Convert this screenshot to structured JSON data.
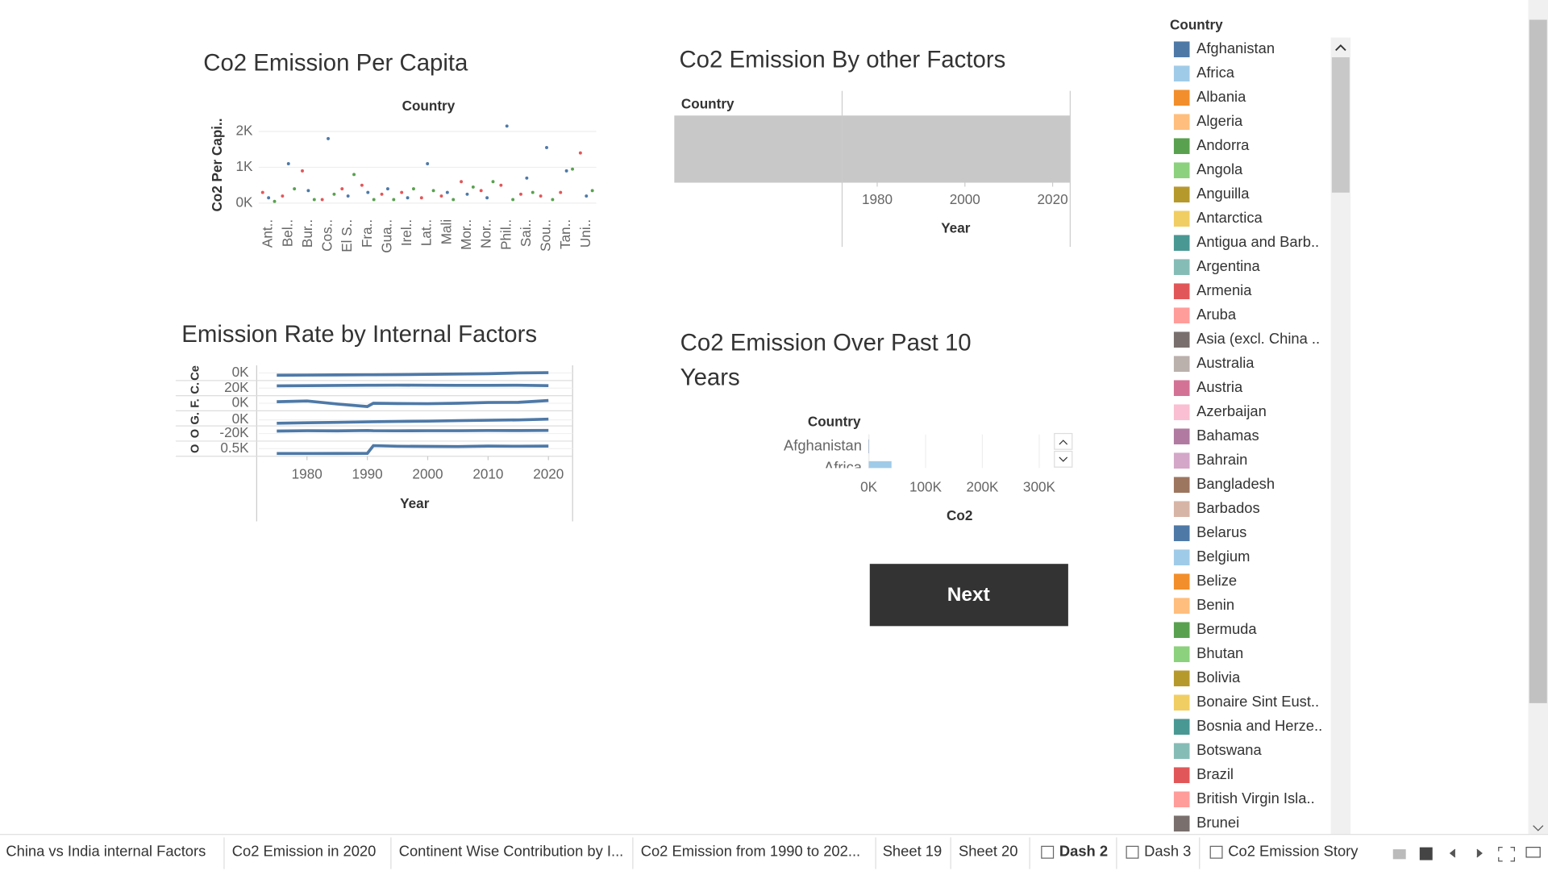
{
  "legend": {
    "title": "Country",
    "entries": [
      {
        "name": "Afghanistan",
        "color": "#4e79a7"
      },
      {
        "name": "Africa",
        "color": "#a0cbe8"
      },
      {
        "name": "Albania",
        "color": "#f28e2b"
      },
      {
        "name": "Algeria",
        "color": "#ffbe7d"
      },
      {
        "name": "Andorra",
        "color": "#59a14f"
      },
      {
        "name": "Angola",
        "color": "#8cd17d"
      },
      {
        "name": "Anguilla",
        "color": "#b6992d"
      },
      {
        "name": "Antarctica",
        "color": "#f1ce63"
      },
      {
        "name": "Antigua and Barb..",
        "color": "#499894"
      },
      {
        "name": "Argentina",
        "color": "#86bcb6"
      },
      {
        "name": "Armenia",
        "color": "#e15759"
      },
      {
        "name": "Aruba",
        "color": "#ff9d9a"
      },
      {
        "name": "Asia (excl. China ..",
        "color": "#79706e"
      },
      {
        "name": "Australia",
        "color": "#bab0ac"
      },
      {
        "name": "Austria",
        "color": "#d37295"
      },
      {
        "name": "Azerbaijan",
        "color": "#fabfd2"
      },
      {
        "name": "Bahamas",
        "color": "#b07aa1"
      },
      {
        "name": "Bahrain",
        "color": "#d4a6c8"
      },
      {
        "name": "Bangladesh",
        "color": "#9d7660"
      },
      {
        "name": "Barbados",
        "color": "#d7b5a6"
      },
      {
        "name": "Belarus",
        "color": "#4e79a7"
      },
      {
        "name": "Belgium",
        "color": "#a0cbe8"
      },
      {
        "name": "Belize",
        "color": "#f28e2b"
      },
      {
        "name": "Benin",
        "color": "#ffbe7d"
      },
      {
        "name": "Bermuda",
        "color": "#59a14f"
      },
      {
        "name": "Bhutan",
        "color": "#8cd17d"
      },
      {
        "name": "Bolivia",
        "color": "#b6992d"
      },
      {
        "name": "Bonaire Sint Eust..",
        "color": "#f1ce63"
      },
      {
        "name": "Bosnia and Herze..",
        "color": "#499894"
      },
      {
        "name": "Botswana",
        "color": "#86bcb6"
      },
      {
        "name": "Brazil",
        "color": "#e15759"
      },
      {
        "name": "British Virgin Isla..",
        "color": "#ff9d9a"
      },
      {
        "name": "Brunei",
        "color": "#79706e"
      }
    ]
  },
  "tabs": [
    "China vs India internal Factors",
    "Co2 Emission in 2020",
    "Continent Wise Contribution by I...",
    "Co2 Emission from 1990 to 202...",
    "Sheet 19",
    "Sheet 20",
    "Dash 2",
    "Dash 3",
    "Co2 Emission Story"
  ],
  "active_tab": 6,
  "button": "Next",
  "chart_data": [
    {
      "type": "scatter",
      "title": "Co2 Emission Per Capita",
      "header": "Country",
      "y_label": "Co2 Per Capi..",
      "categories": [
        "Ant..",
        "Bel..",
        "Bur..",
        "Cos..",
        "El S..",
        "Fra..",
        "Gua..",
        "Irel..",
        "Lat..",
        "Mali",
        "Mor..",
        "Nor..",
        "Phil..",
        "Sai..",
        "Sou..",
        "Tan..",
        "Uni.."
      ],
      "series": [
        {
          "color": "#e15759",
          "values": [
            300,
            200,
            900,
            100,
            400,
            500,
            250,
            300,
            150,
            200,
            600,
            350,
            500,
            250,
            200,
            300,
            1400
          ]
        },
        {
          "color": "#4e79a7",
          "values": [
            150,
            1100,
            350,
            1800,
            200,
            300,
            400,
            150,
            1100,
            300,
            250,
            150,
            2150,
            700,
            1550,
            900,
            200
          ]
        },
        {
          "color": "#59a14f",
          "values": [
            50,
            400,
            100,
            250,
            800,
            100,
            100,
            400,
            350,
            100,
            450,
            600,
            100,
            300,
            100,
            950,
            350
          ]
        }
      ],
      "ylim": [
        -200,
        2250
      ],
      "yticks": [
        {
          "value": 0,
          "label": "0K"
        },
        {
          "value": 1000,
          "label": "1K"
        },
        {
          "value": 2000,
          "label": "2K"
        }
      ]
    },
    {
      "type": "band",
      "title": "Co2 Emission By other Factors",
      "header": "Country",
      "x_label": "Year",
      "xlim": [
        1972,
        2024
      ],
      "xticks": [
        1980,
        2000,
        2020
      ]
    },
    {
      "type": "line",
      "title": "Emission Rate by Internal Factors",
      "x_label": "Year",
      "x": [
        1975,
        1980,
        1985,
        1990,
        1991,
        1995,
        2000,
        2005,
        2010,
        2015,
        2020
      ],
      "xlim": [
        1972,
        2024
      ],
      "xticks": [
        1980,
        1990,
        2000,
        2010,
        2020
      ],
      "series": [
        {
          "name": "Ce",
          "color": "#4e79a7",
          "ylim": [
            -5000,
            5000
          ],
          "ytick": {
            "value": 0,
            "label": "0K"
          },
          "values": [
            -1500,
            -1400,
            -1300,
            -1200,
            -1200,
            -1100,
            -900,
            -700,
            -500,
            0,
            200
          ]
        },
        {
          "name": "C.",
          "color": "#4e79a7",
          "ylim": [
            0,
            40000
          ],
          "ytick": {
            "value": 20000,
            "label": "20K"
          },
          "values": [
            26000,
            26500,
            27000,
            27500,
            27500,
            27800,
            27600,
            27200,
            27300,
            27500,
            26500
          ]
        },
        {
          "name": "F.",
          "color": "#4e79a7",
          "ylim": [
            -5000,
            5000
          ],
          "ytick": {
            "value": 0,
            "label": "0K"
          },
          "values": [
            1000,
            1500,
            -500,
            -2200,
            0,
            -200,
            -300,
            0,
            500,
            600,
            1800
          ]
        },
        {
          "name": "G.",
          "color": "#4e79a7",
          "ylim": [
            -4000,
            6000
          ],
          "ytick": {
            "value": 0,
            "label": "0K"
          },
          "values": [
            -2200,
            -1900,
            -1600,
            -1300,
            -1200,
            -1000,
            -800,
            -500,
            -200,
            0,
            500
          ]
        },
        {
          "name": "O",
          "color": "#4e79a7",
          "ylim": [
            -40000,
            0
          ],
          "ytick": {
            "value": -20000,
            "label": "-20K"
          },
          "values": [
            -13500,
            -12500,
            -13000,
            -12000,
            -12500,
            -12800,
            -12600,
            -12500,
            -12000,
            -12200,
            -11800
          ]
        },
        {
          "name": "O",
          "color": "#4e79a7",
          "ylim": [
            0,
            1000
          ],
          "ytick": {
            "value": 500,
            "label": "0.5K"
          },
          "values": [
            180,
            180,
            185,
            190,
            700,
            660,
            650,
            640,
            670,
            660,
            670
          ]
        }
      ]
    },
    {
      "type": "hbar",
      "title": "Co2 Emission Over Past 10 Years",
      "header": "Country",
      "x_label": "Co2",
      "categories": [
        "Afghanistan",
        "Africa"
      ],
      "values": [
        500,
        40000
      ],
      "colors": [
        "#4e79a7",
        "#a0cbe8"
      ],
      "xlim": [
        0,
        358000
      ],
      "xticks": [
        {
          "value": 0,
          "label": "0K"
        },
        {
          "value": 100000,
          "label": "100K"
        },
        {
          "value": 200000,
          "label": "200K"
        },
        {
          "value": 300000,
          "label": "300K"
        }
      ]
    }
  ]
}
